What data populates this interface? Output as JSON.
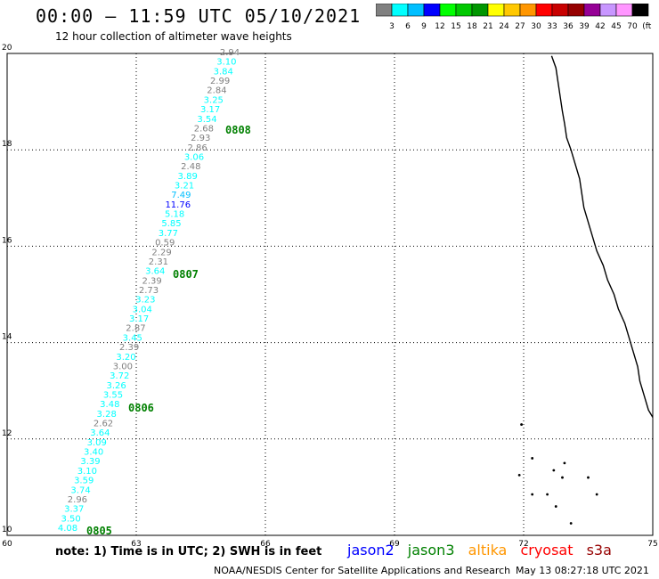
{
  "header": {
    "title": "00:00 – 11:59 UTC 05/10/2021",
    "subtitle": "12 hour collection of altimeter wave heights"
  },
  "colorbar": {
    "colors": [
      "#808080",
      "#00ffff",
      "#00bfff",
      "#0000ff",
      "#00ff00",
      "#00c800",
      "#009600",
      "#ffff00",
      "#ffc800",
      "#ff9600",
      "#ff0000",
      "#c80000",
      "#960000",
      "#960096",
      "#c896ff",
      "#ff96ff",
      "#000000"
    ],
    "labels": [
      "3",
      "6",
      "9",
      "12",
      "15",
      "18",
      "21",
      "24",
      "27",
      "30",
      "33",
      "36",
      "39",
      "42",
      "45",
      "70",
      "(ft)"
    ]
  },
  "map": {
    "lon_range": [
      60,
      75
    ],
    "lat_range": [
      10,
      20
    ],
    "lon_ticks": [
      "60",
      "63",
      "66",
      "69",
      "72",
      "75"
    ],
    "lat_ticks": [
      "10",
      "12",
      "14",
      "16",
      "18",
      "20"
    ],
    "swh_points": [
      {
        "v": "2.94",
        "c": "#808080"
      },
      {
        "v": "3.10",
        "c": "#00ffff"
      },
      {
        "v": "3.84",
        "c": "#00ffff"
      },
      {
        "v": "2.99",
        "c": "#808080"
      },
      {
        "v": "2.84",
        "c": "#808080"
      },
      {
        "v": "3.25",
        "c": "#00ffff"
      },
      {
        "v": "3.17",
        "c": "#00ffff"
      },
      {
        "v": "3.54",
        "c": "#00ffff"
      },
      {
        "v": "2.68",
        "c": "#808080"
      },
      {
        "v": "2.93",
        "c": "#808080"
      },
      {
        "v": "2.86",
        "c": "#808080"
      },
      {
        "v": "3.06",
        "c": "#00ffff"
      },
      {
        "v": "2.48",
        "c": "#808080"
      },
      {
        "v": "3.89",
        "c": "#00ffff"
      },
      {
        "v": "3.21",
        "c": "#00ffff"
      },
      {
        "v": "7.49",
        "c": "#00bfff"
      },
      {
        "v": "11.76",
        "c": "#0000ff"
      },
      {
        "v": "5.18",
        "c": "#00ffff"
      },
      {
        "v": "5.85",
        "c": "#00ffff"
      },
      {
        "v": "3.77",
        "c": "#00ffff"
      },
      {
        "v": "0.59",
        "c": "#808080"
      },
      {
        "v": "2.29",
        "c": "#808080"
      },
      {
        "v": "2.31",
        "c": "#808080"
      },
      {
        "v": "3.64",
        "c": "#00ffff"
      },
      {
        "v": "2.39",
        "c": "#808080"
      },
      {
        "v": "2.73",
        "c": "#808080"
      },
      {
        "v": "3.23",
        "c": "#00ffff"
      },
      {
        "v": "3.04",
        "c": "#00ffff"
      },
      {
        "v": "3.17",
        "c": "#00ffff"
      },
      {
        "v": "2.87",
        "c": "#808080"
      },
      {
        "v": "3.45",
        "c": "#00ffff"
      },
      {
        "v": "2.39",
        "c": "#808080"
      },
      {
        "v": "3.20",
        "c": "#00ffff"
      },
      {
        "v": "3.00",
        "c": "#808080"
      },
      {
        "v": "3.72",
        "c": "#00ffff"
      },
      {
        "v": "3.26",
        "c": "#00ffff"
      },
      {
        "v": "3.55",
        "c": "#00ffff"
      },
      {
        "v": "3.48",
        "c": "#00ffff"
      },
      {
        "v": "3.28",
        "c": "#00ffff"
      },
      {
        "v": "2.62",
        "c": "#808080"
      },
      {
        "v": "3.64",
        "c": "#00ffff"
      },
      {
        "v": "3.09",
        "c": "#00ffff"
      },
      {
        "v": "3.40",
        "c": "#00ffff"
      },
      {
        "v": "3.39",
        "c": "#00ffff"
      },
      {
        "v": "3.10",
        "c": "#00ffff"
      },
      {
        "v": "3.59",
        "c": "#00ffff"
      },
      {
        "v": "3.74",
        "c": "#00ffff"
      },
      {
        "v": "2.96",
        "c": "#808080"
      },
      {
        "v": "3.37",
        "c": "#00ffff"
      },
      {
        "v": "3.50",
        "c": "#00ffff"
      },
      {
        "v": "4.08",
        "c": "#00ffff"
      }
    ],
    "time_labels": [
      "0808",
      "0807",
      "0806",
      "0805"
    ],
    "time_label_color": "#008000"
  },
  "footer": {
    "note": "note:  1) Time is in UTC;  2) SWH is in feet",
    "satellites": [
      {
        "name": "jason2",
        "color": "#0000ff"
      },
      {
        "name": "jason3",
        "color": "#008000"
      },
      {
        "name": "altika",
        "color": "#ff9600"
      },
      {
        "name": "cryosat",
        "color": "#ff0000"
      },
      {
        "name": "s3a",
        "color": "#960000"
      }
    ],
    "credit": "NOAA/NESDIS Center for Satellite Applications and Research",
    "timestamp": "May 13 08:27:18 UTC 2021"
  }
}
